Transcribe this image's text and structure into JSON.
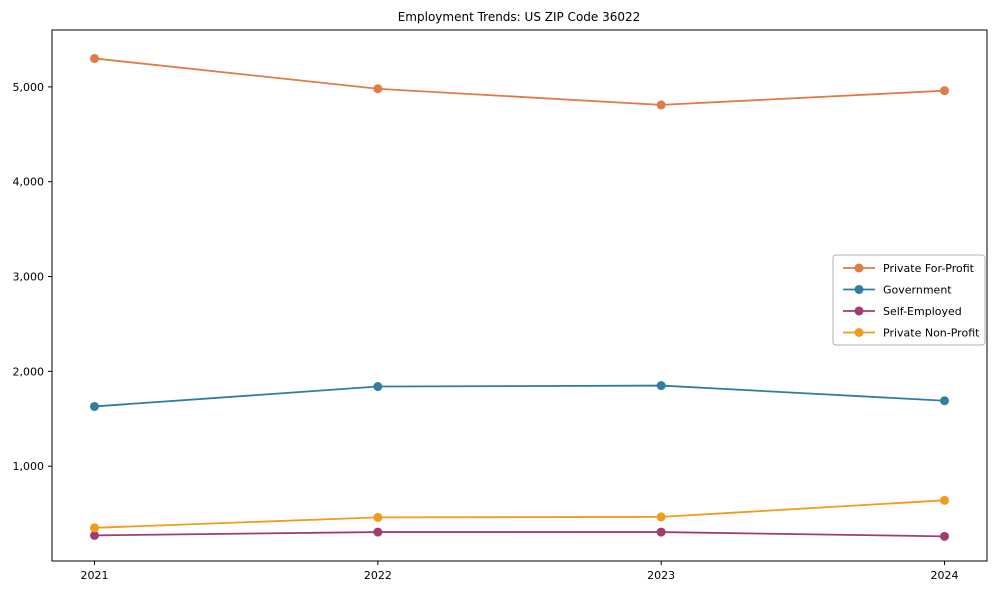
{
  "chart_data": {
    "type": "line",
    "title": "Employment Trends: US ZIP Code 36022",
    "x": [
      2021,
      2022,
      2023,
      2024
    ],
    "categories": [
      "2021",
      "2022",
      "2023",
      "2024"
    ],
    "series": [
      {
        "name": "Private For-Profit",
        "color": "#E07B43",
        "values": [
          5300,
          4980,
          4810,
          4960
        ]
      },
      {
        "name": "Government",
        "color": "#2E7EA0",
        "values": [
          1630,
          1840,
          1850,
          1690
        ]
      },
      {
        "name": "Self-Employed",
        "color": "#A23B72",
        "values": [
          270,
          305,
          305,
          260
        ]
      },
      {
        "name": "Private Non-Profit",
        "color": "#F09C1B",
        "values": [
          350,
          460,
          465,
          640
        ]
      }
    ],
    "xlabel": "",
    "ylabel": "",
    "xlim": [
      2020.85,
      2024.15
    ],
    "ylim": [
      0,
      5600
    ],
    "yticks": {
      "values": [
        1000,
        2000,
        3000,
        4000,
        5000
      ],
      "labels": [
        "1,000",
        "2,000",
        "3,000",
        "4,000",
        "5,000"
      ]
    },
    "grid": false,
    "legend_position": "middle-right",
    "marker": "circle",
    "frame_color": "#000000",
    "legend_border_color": "#b0b0b0",
    "background_color": "#ffffff"
  }
}
